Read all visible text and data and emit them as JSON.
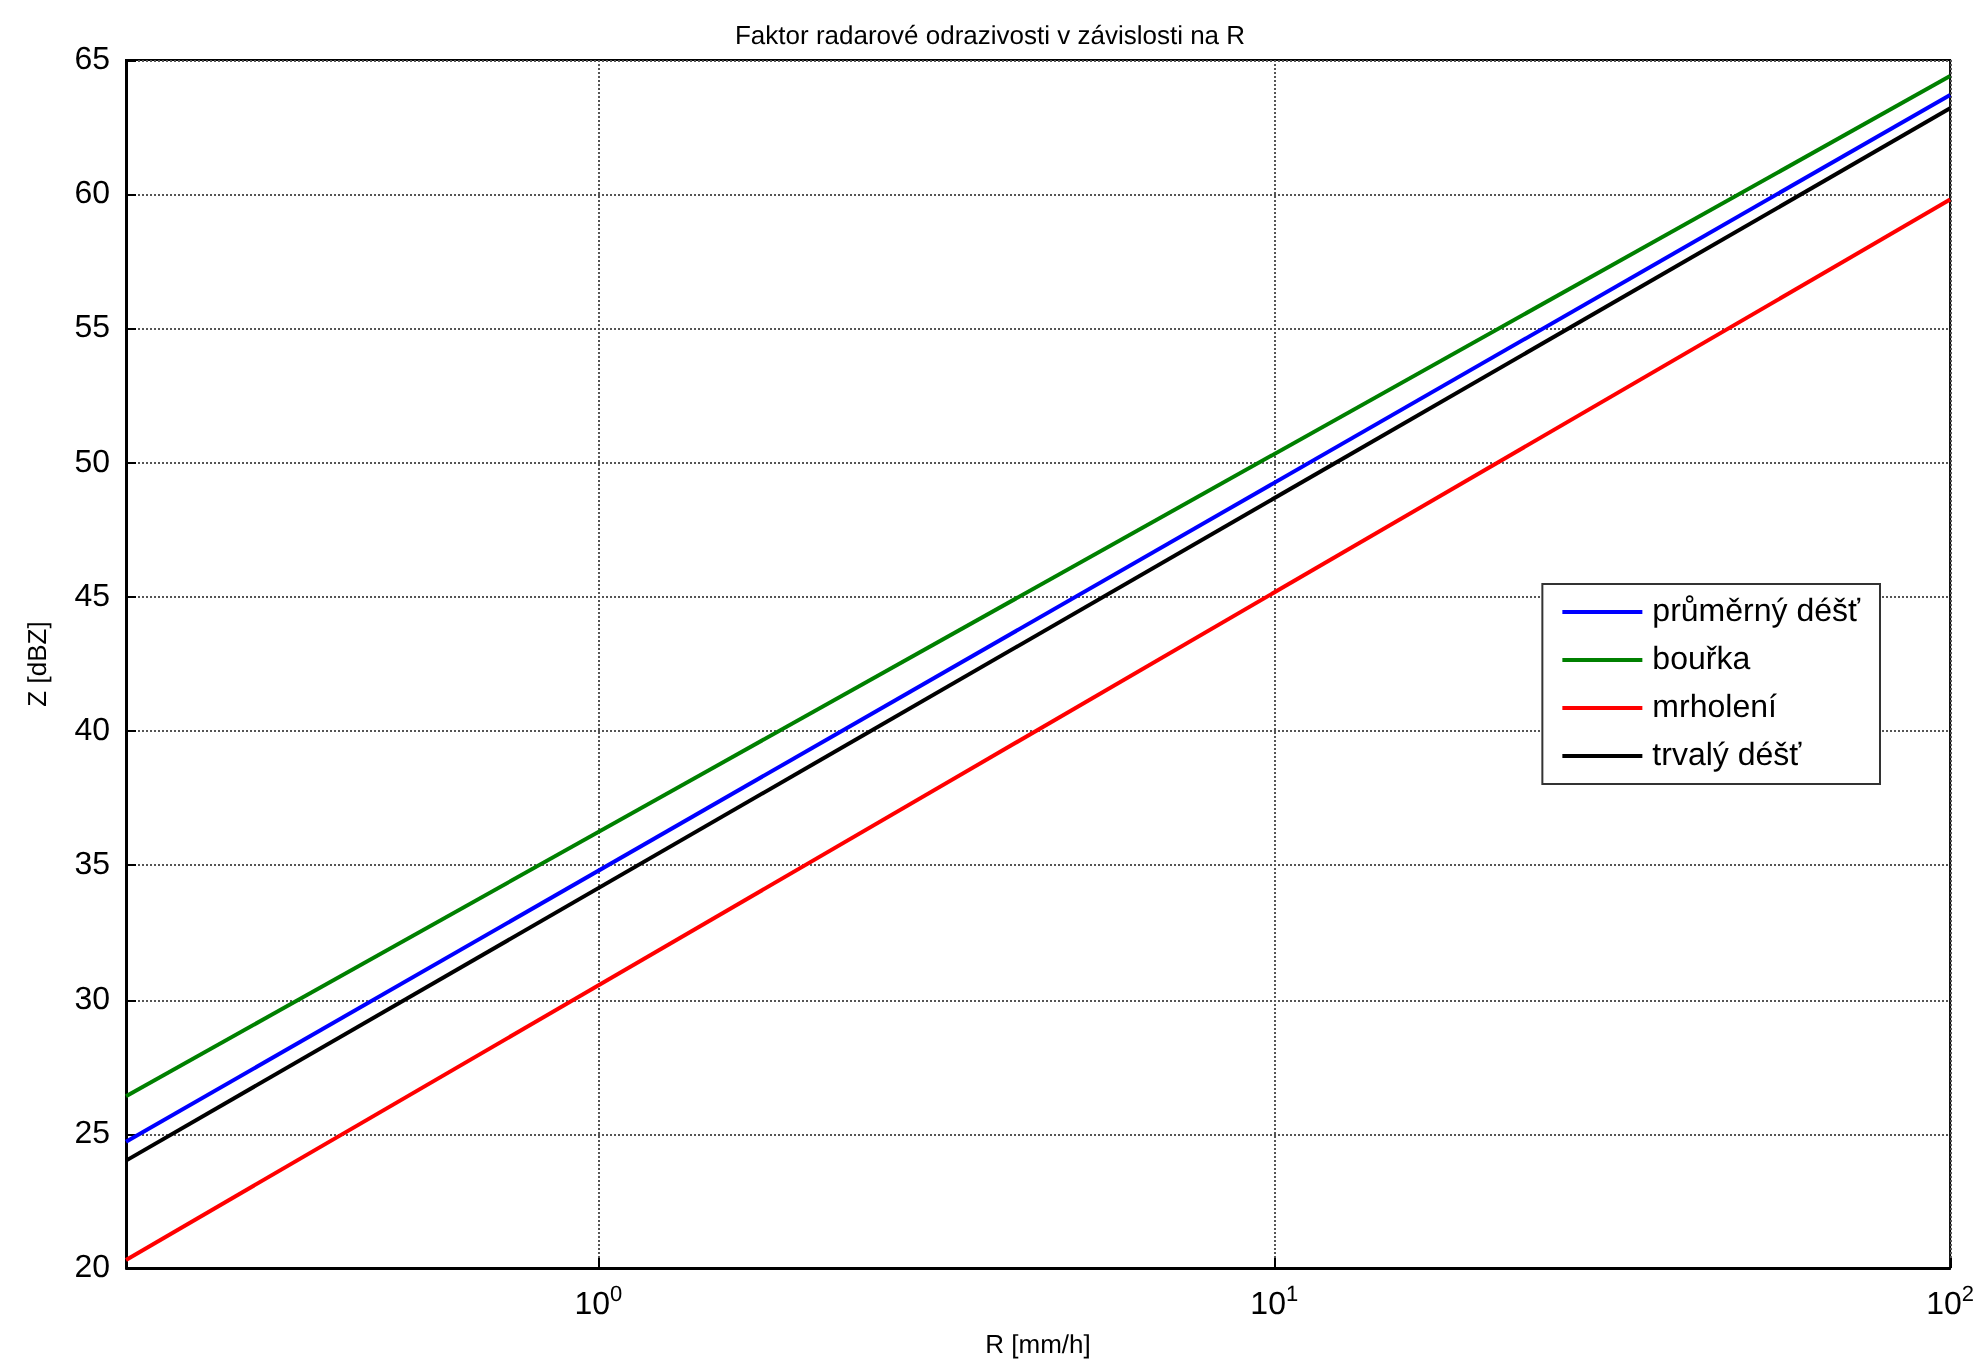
{
  "chart_data": {
    "type": "line",
    "title": "Faktor radarové odrazivosti v závislosti na R",
    "xlabel": "R [mm/h]",
    "ylabel": "Z [dBZ]",
    "x": [
      0.2,
      100
    ],
    "series": [
      {
        "name": "průměrný déšť",
        "color": "#0000ff",
        "values": [
          24.7,
          63.7
        ]
      },
      {
        "name": "bouřka",
        "color": "#008000",
        "values": [
          26.4,
          64.4
        ]
      },
      {
        "name": "mrholení",
        "color": "#ff0000",
        "values": [
          20.3,
          59.8
        ]
      },
      {
        "name": "trvalý déšť",
        "color": "#000000",
        "values": [
          24.0,
          63.2
        ]
      }
    ],
    "log": "x",
    "xlim": [
      0.2,
      100
    ],
    "xticks": [
      {
        "value": 1,
        "label": "10$^{0}$"
      },
      {
        "value": 10,
        "label": "10$^{1}$"
      },
      {
        "value": 100,
        "label": "10$^{2}$"
      }
    ],
    "ylim": [
      20,
      65
    ],
    "yticks": [
      20,
      25,
      30,
      35,
      40,
      45,
      50,
      55,
      60,
      65
    ],
    "grid": true,
    "legend": "right",
    "marker": "none",
    "line_style": "solid"
  }
}
